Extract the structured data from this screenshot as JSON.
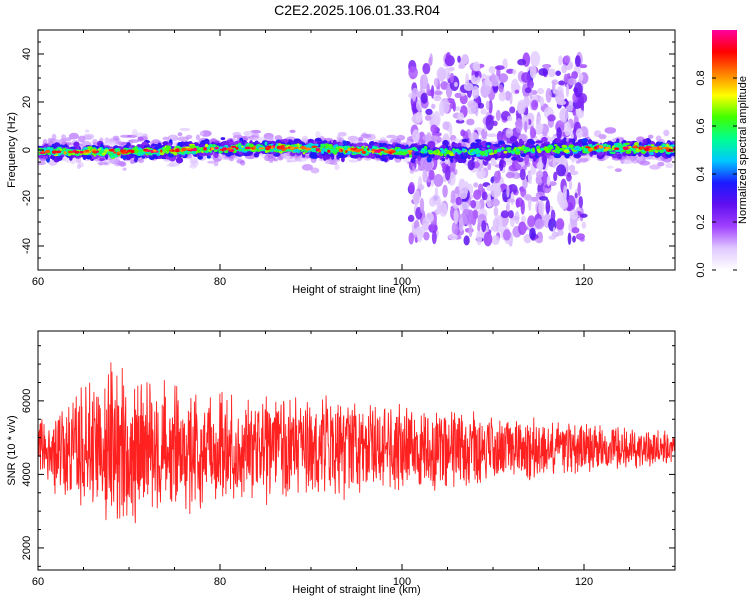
{
  "title": "C2E2.2025.106.01.33.R04",
  "chart_data": [
    {
      "type": "heatmap",
      "name": "spectrogram",
      "xlabel": "Height of straight line (km)",
      "ylabel": "Frequency (Hz)",
      "xlim": [
        60,
        130
      ],
      "ylim": [
        -50,
        50
      ],
      "xticks": [
        60,
        80,
        100,
        120
      ],
      "yticks": [
        -40,
        -20,
        0,
        20,
        40
      ],
      "colorbar": {
        "label": "Normalized spectral amplitude",
        "range": [
          0,
          1
        ],
        "ticks": [
          "0.0",
          "0.2",
          "0.4",
          "0.6",
          "0.8"
        ],
        "tick_values": [
          0,
          0.2,
          0.4,
          0.6,
          0.8
        ],
        "colormap": [
          "#ffffff",
          "#e0c8ff",
          "#a040ff",
          "#6010f0",
          "#1a1aff",
          "#00c8ff",
          "#00ff90",
          "#40ff00",
          "#ffff00",
          "#ff8000",
          "#ff0000",
          "#ff00a0"
        ]
      },
      "features": {
        "center_band_hz": 0,
        "band_width_hz": 4,
        "scatter_region_km": [
          101,
          120
        ],
        "scatter_spread_hz": 38
      }
    },
    {
      "type": "line",
      "name": "snr",
      "xlabel": "Height of straight line (km)",
      "ylabel": "SNR (10 * v/v)",
      "xlim": [
        60,
        130
      ],
      "ylim": [
        1400,
        7900
      ],
      "xticks": [
        60,
        80,
        100,
        120
      ],
      "yticks": [
        2000,
        4000,
        6000
      ],
      "color": "#ff2020",
      "series_profile": {
        "mean": 4700,
        "envelope_km": [
          60,
          68,
          72,
          80,
          100,
          115,
          130
        ],
        "envelope_amp": [
          900,
          2600,
          2200,
          1700,
          1400,
          900,
          550
        ]
      }
    }
  ]
}
